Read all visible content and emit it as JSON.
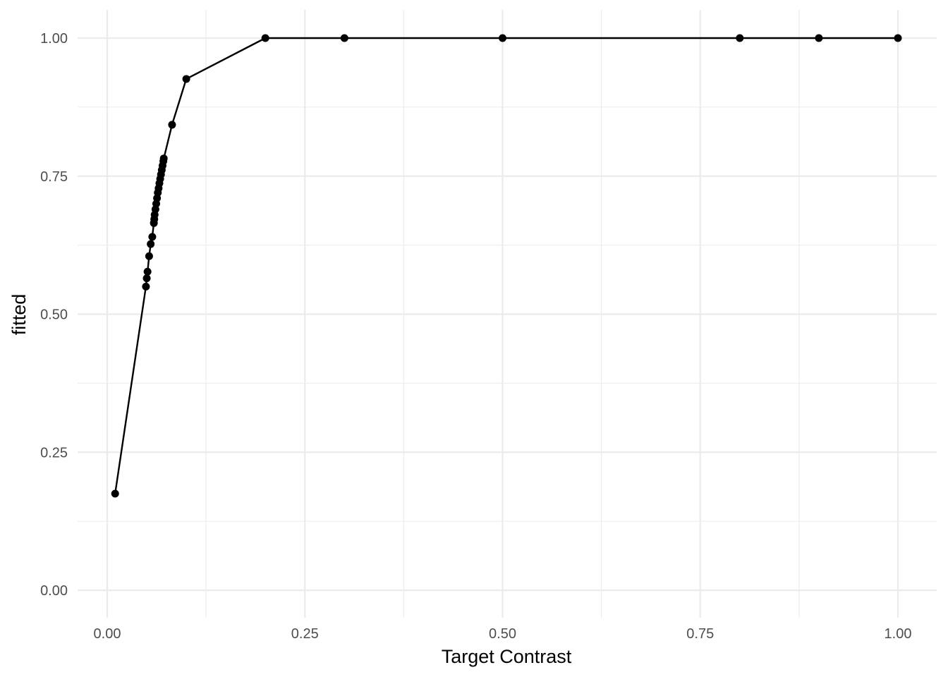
{
  "chart_data": {
    "type": "line",
    "title": "",
    "xlabel": "Target Contrast",
    "ylabel": "fitted",
    "xlim": [
      -0.03,
      1.05
    ],
    "ylim": [
      -0.04,
      1.04
    ],
    "x_ticks": [
      0.0,
      0.25,
      0.5,
      0.75,
      1.0
    ],
    "x_tick_labels": [
      "0.00",
      "0.25",
      "0.50",
      "0.75",
      "1.00"
    ],
    "y_ticks": [
      0.0,
      0.25,
      0.5,
      0.75,
      1.0
    ],
    "y_tick_labels": [
      "0.00",
      "0.25",
      "0.50",
      "0.75",
      "1.00"
    ],
    "x_minor": [
      0.125,
      0.375,
      0.625,
      0.875
    ],
    "y_minor": [
      0.125,
      0.375,
      0.625,
      0.875
    ],
    "grid": true,
    "series": [
      {
        "color": "#000000",
        "points": [
          {
            "x": 0.01,
            "y": 0.175
          },
          {
            "x": 0.049,
            "y": 0.55
          },
          {
            "x": 0.05,
            "y": 0.565
          },
          {
            "x": 0.051,
            "y": 0.577
          },
          {
            "x": 0.053,
            "y": 0.605
          },
          {
            "x": 0.055,
            "y": 0.627
          },
          {
            "x": 0.057,
            "y": 0.64
          },
          {
            "x": 0.059,
            "y": 0.665
          },
          {
            "x": 0.0595,
            "y": 0.672
          },
          {
            "x": 0.06,
            "y": 0.68
          },
          {
            "x": 0.061,
            "y": 0.69
          },
          {
            "x": 0.062,
            "y": 0.7
          },
          {
            "x": 0.063,
            "y": 0.71
          },
          {
            "x": 0.064,
            "y": 0.72
          },
          {
            "x": 0.065,
            "y": 0.728
          },
          {
            "x": 0.066,
            "y": 0.737
          },
          {
            "x": 0.067,
            "y": 0.745
          },
          {
            "x": 0.068,
            "y": 0.753
          },
          {
            "x": 0.069,
            "y": 0.761
          },
          {
            "x": 0.07,
            "y": 0.769
          },
          {
            "x": 0.071,
            "y": 0.777
          },
          {
            "x": 0.0715,
            "y": 0.782
          },
          {
            "x": 0.082,
            "y": 0.843
          },
          {
            "x": 0.1,
            "y": 0.926
          },
          {
            "x": 0.2,
            "y": 1.0
          },
          {
            "x": 0.3,
            "y": 1.0
          },
          {
            "x": 0.5,
            "y": 1.0
          },
          {
            "x": 0.8,
            "y": 1.0
          },
          {
            "x": 0.9,
            "y": 1.0
          },
          {
            "x": 1.0,
            "y": 1.0
          }
        ]
      }
    ]
  }
}
